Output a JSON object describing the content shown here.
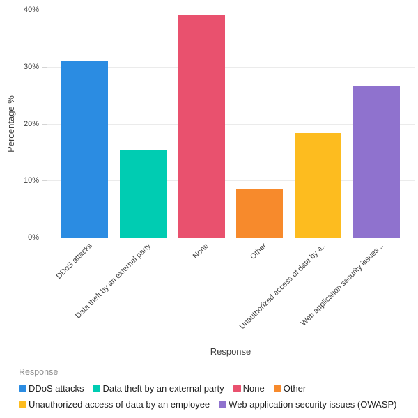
{
  "chart_data": {
    "type": "bar",
    "title": "",
    "xlabel": "Response",
    "ylabel": "Percentage %",
    "ylim": [
      0,
      40
    ],
    "yticks": [
      0,
      10,
      20,
      30,
      40
    ],
    "ytick_suffix": "%",
    "grid": "horizontal",
    "legend_position": "bottom",
    "categories": [
      "DDoS attacks",
      "Data theft by an external party",
      "None",
      "Other",
      "Unauthorized access of data by an employee",
      "Web application security issues (OWASP)"
    ],
    "x_tick_labels": [
      "DDoS attacks",
      "Data theft by an external party",
      "None",
      "Other",
      "Unauthorized access of data by a..",
      "Web application security issues .."
    ],
    "values": [
      31,
      15.3,
      39,
      8.6,
      18.4,
      26.5
    ],
    "colors": [
      "#2b8ce2",
      "#00ccb2",
      "#e9516e",
      "#f78a2c",
      "#fdbc1f",
      "#8f72ce"
    ],
    "legend": {
      "title": "Response",
      "items": [
        {
          "label": "DDoS attacks",
          "color": "#2b8ce2"
        },
        {
          "label": "Data theft by an external party",
          "color": "#00ccb2"
        },
        {
          "label": "None",
          "color": "#e9516e"
        },
        {
          "label": "Other",
          "color": "#f78a2c"
        },
        {
          "label": "Unauthorized access of data by an employee",
          "color": "#fdbc1f"
        },
        {
          "label": "Web application security issues (OWASP)",
          "color": "#8f72ce"
        }
      ]
    }
  }
}
